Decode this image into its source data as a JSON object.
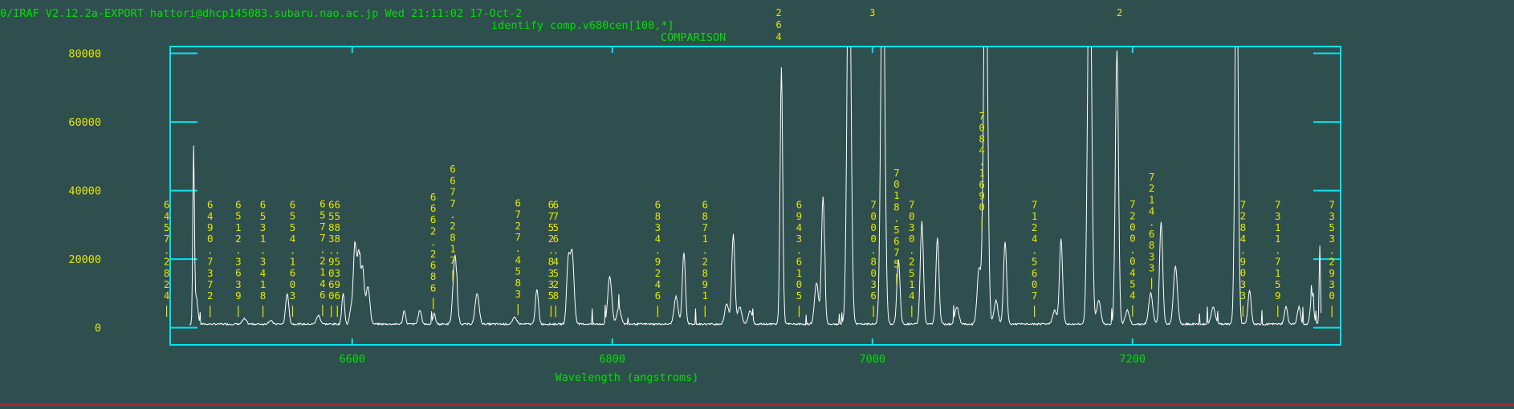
{
  "header": {
    "left_text": "0/IRAF V2.12.2a-EXPORT hattori@dhcp145083.subaru.nao.ac.jp Wed 21:11:02 17-Oct-2",
    "task_text": "identify comp.v680cen[100,*]",
    "object_text": "COMPARISON",
    "overflow_marks": [
      {
        "x": 6928,
        "text": "264"
      },
      {
        "x": 7000,
        "text": "3"
      },
      {
        "x": 7190,
        "text": "2"
      }
    ]
  },
  "colors": {
    "background": "#2f4f4f",
    "frame": "#00e5ee",
    "axis_text": "#00e000",
    "label_text": "#e6e600",
    "spectrum": "#ffffff"
  },
  "chart_data": {
    "type": "line",
    "title": "",
    "xlabel": "Wavelength (angstroms)",
    "ylabel": "",
    "xlim": [
      6460,
      7360
    ],
    "ylim": [
      -5000,
      82000
    ],
    "xticks": [
      6600,
      6800,
      7000,
      7200
    ],
    "yticks": [
      0,
      20000,
      40000,
      60000,
      80000
    ],
    "xtick_labels": [
      "6600",
      "6800",
      "7000",
      "7200"
    ],
    "ytick_labels": [
      "0",
      "20000",
      "40000",
      "60000",
      "80000"
    ],
    "grid": false,
    "continuum": 800,
    "spectrum_start": 6475,
    "spectrum_end": 7345,
    "spectrum_peaks": [
      {
        "x": 6478.0,
        "y": 50000,
        "w": 0.6
      },
      {
        "x": 6480.0,
        "y": 8000,
        "w": 1.2
      },
      {
        "x": 6517.0,
        "y": 1500,
        "w": 1.5
      },
      {
        "x": 6537.0,
        "y": 1000,
        "w": 1.5
      },
      {
        "x": 6550.0,
        "y": 9000,
        "w": 1.2
      },
      {
        "x": 6574.0,
        "y": 2500,
        "w": 1.5
      },
      {
        "x": 6593.0,
        "y": 9000,
        "w": 1.0
      },
      {
        "x": 6599.0,
        "y": 4500,
        "w": 1.0
      },
      {
        "x": 6602.0,
        "y": 23000,
        "w": 1.2
      },
      {
        "x": 6605.0,
        "y": 20000,
        "w": 1.2
      },
      {
        "x": 6608.0,
        "y": 16000,
        "w": 1.2
      },
      {
        "x": 6612.0,
        "y": 11000,
        "w": 1.5
      },
      {
        "x": 6640.0,
        "y": 4000,
        "w": 1.0
      },
      {
        "x": 6652.0,
        "y": 4000,
        "w": 1.2
      },
      {
        "x": 6663.0,
        "y": 3000,
        "w": 1.0
      },
      {
        "x": 6679.0,
        "y": 20000,
        "w": 1.5
      },
      {
        "x": 6696.0,
        "y": 9000,
        "w": 1.5
      },
      {
        "x": 6725.0,
        "y": 2000,
        "w": 1.5
      },
      {
        "x": 6742.0,
        "y": 10000,
        "w": 1.2
      },
      {
        "x": 6766.0,
        "y": 17000,
        "w": 1.2
      },
      {
        "x": 6769.0,
        "y": 21000,
        "w": 1.5
      },
      {
        "x": 6798.0,
        "y": 14000,
        "w": 1.5
      },
      {
        "x": 6805.0,
        "y": 5000,
        "w": 1.5
      },
      {
        "x": 6849.0,
        "y": 8000,
        "w": 1.5
      },
      {
        "x": 6855.0,
        "y": 21000,
        "w": 1.2
      },
      {
        "x": 6888.0,
        "y": 6000,
        "w": 1.5
      },
      {
        "x": 6893.0,
        "y": 26000,
        "w": 1.2
      },
      {
        "x": 6898.0,
        "y": 5000,
        "w": 1.5
      },
      {
        "x": 6906.0,
        "y": 4000,
        "w": 1.5
      },
      {
        "x": 6930.0,
        "y": 75000,
        "w": 1.0
      },
      {
        "x": 6957.0,
        "y": 12000,
        "w": 1.5
      },
      {
        "x": 6962.0,
        "y": 37000,
        "w": 1.2
      },
      {
        "x": 6982.0,
        "y": 120000,
        "w": 1.5
      },
      {
        "x": 7008.0,
        "y": 120000,
        "w": 1.5
      },
      {
        "x": 7020.0,
        "y": 19000,
        "w": 1.2
      },
      {
        "x": 7038.0,
        "y": 30000,
        "w": 1.2
      },
      {
        "x": 7050.0,
        "y": 25000,
        "w": 1.2
      },
      {
        "x": 7065.0,
        "y": 5000,
        "w": 1.5
      },
      {
        "x": 7082.0,
        "y": 16000,
        "w": 1.5
      },
      {
        "x": 7087.0,
        "y": 120000,
        "w": 1.5
      },
      {
        "x": 7095.0,
        "y": 7000,
        "w": 1.5
      },
      {
        "x": 7102.0,
        "y": 24000,
        "w": 1.2
      },
      {
        "x": 7140.0,
        "y": 4000,
        "w": 1.5
      },
      {
        "x": 7145.0,
        "y": 25000,
        "w": 1.2
      },
      {
        "x": 7167.0,
        "y": 120000,
        "w": 1.5
      },
      {
        "x": 7174.0,
        "y": 7000,
        "w": 1.5
      },
      {
        "x": 7188.0,
        "y": 80000,
        "w": 1.2
      },
      {
        "x": 7196.0,
        "y": 4000,
        "w": 1.5
      },
      {
        "x": 7214.0,
        "y": 9000,
        "w": 1.5
      },
      {
        "x": 7222.0,
        "y": 30000,
        "w": 1.2
      },
      {
        "x": 7233.0,
        "y": 17000,
        "w": 1.5
      },
      {
        "x": 7262.0,
        "y": 5000,
        "w": 1.5
      },
      {
        "x": 7280.0,
        "y": 120000,
        "w": 1.2
      },
      {
        "x": 7290.0,
        "y": 10000,
        "w": 1.2
      },
      {
        "x": 7318.0,
        "y": 5000,
        "w": 1.2
      },
      {
        "x": 7328.0,
        "y": 5000,
        "w": 1.2
      },
      {
        "x": 7338.0,
        "y": 9000,
        "w": 1.2
      },
      {
        "x": 7344.0,
        "y": 23000,
        "w": 0.5
      }
    ],
    "line_ids": [
      {
        "x": 6457.2824,
        "label": "6457.2824"
      },
      {
        "x": 6490.7372,
        "label": "6490.7372"
      },
      {
        "x": 6512.3639,
        "label": "6512.3639"
      },
      {
        "x": 6531.3418,
        "label": "6531.3418"
      },
      {
        "x": 6554.1603,
        "label": "6554.1603"
      },
      {
        "x": 6577.2146,
        "label": "6577.2146"
      },
      {
        "x": 6583.906,
        "label": "6583.9060"
      },
      {
        "x": 6588.5396,
        "label": "6588.5396"
      },
      {
        "x": 6662.2686,
        "label": "6662.2686"
      },
      {
        "x": 6677.2817,
        "label": "6677.2817"
      },
      {
        "x": 6727.4583,
        "label": "6727.4583"
      },
      {
        "x": 6752.8335,
        "label": "6752.8335"
      },
      {
        "x": 6756.4528,
        "label": "6756.4528"
      },
      {
        "x": 6834.9246,
        "label": "6834.9246"
      },
      {
        "x": 6871.2891,
        "label": "6871.2891"
      },
      {
        "x": 6943.6105,
        "label": "6943.6105"
      },
      {
        "x": 7000.8036,
        "label": "7000.8036"
      },
      {
        "x": 7018.5675,
        "label": "7018.5675"
      },
      {
        "x": 7030.2514,
        "label": "7030.2514"
      },
      {
        "x": 7084.169,
        "label": "7084.1690"
      },
      {
        "x": 7124.5607,
        "label": "7124.5607"
      },
      {
        "x": 7200.0454,
        "label": "7200.0454"
      },
      {
        "x": 7214.6833,
        "label": "7214.6833"
      },
      {
        "x": 7284.9033,
        "label": "7284.9033"
      },
      {
        "x": 7311.7159,
        "label": "7311.7159"
      },
      {
        "x": 7353.293,
        "label": "7353.2930"
      }
    ]
  }
}
